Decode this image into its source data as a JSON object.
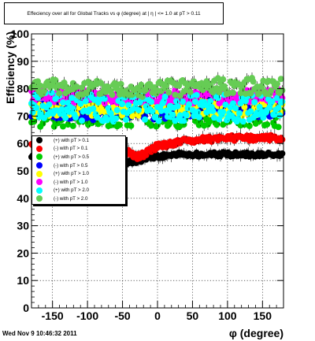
{
  "title": "Effeciency over all for Global Tracks vs φ (degree) at | η | <= 1.0 at pT > 0.11",
  "footer": "Wed Nov  9 10:46:32 2011",
  "chart_data": {
    "type": "scatter",
    "title": "Effeciency over all for Global Tracks vs φ (degree) at | η | <= 1.0 at pT > 0.11",
    "xlabel": "φ (degree)",
    "ylabel": "Efficiency (%)",
    "xlim": [
      -180,
      180
    ],
    "ylim": [
      0,
      100
    ],
    "xticks": [
      -150,
      -100,
      -50,
      0,
      50,
      100,
      150
    ],
    "yticks": [
      0,
      10,
      20,
      30,
      40,
      50,
      60,
      70,
      80,
      90,
      100
    ],
    "grid": true,
    "legend_position": "left-middle",
    "x_step": 1.8,
    "series": [
      {
        "name": "(+) with pT > 0.1",
        "color": "#000000",
        "base": [
          [
            -180,
            55
          ],
          [
            -140,
            53
          ],
          [
            -110,
            52
          ],
          [
            -70,
            52
          ],
          [
            -40,
            53
          ],
          [
            -10,
            55
          ],
          [
            30,
            56
          ],
          [
            80,
            56
          ],
          [
            120,
            56
          ],
          [
            180,
            56
          ]
        ],
        "amp": 0.8,
        "seed": 1
      },
      {
        "name": "(-) with pT > 0.1",
        "color": "#ff0000",
        "base": [
          [
            -180,
            60
          ],
          [
            -140,
            60
          ],
          [
            -80,
            60
          ],
          [
            -50,
            58
          ],
          [
            -30,
            55
          ],
          [
            -20,
            56
          ],
          [
            0,
            59
          ],
          [
            40,
            61
          ],
          [
            100,
            62
          ],
          [
            180,
            62
          ]
        ],
        "amp": 1.0,
        "seed": 2
      },
      {
        "name": "(+) with pT > 0.5",
        "color": "#00cc00",
        "base": [
          [
            -180,
            70
          ],
          [
            -100,
            70
          ],
          [
            0,
            70
          ],
          [
            100,
            70
          ],
          [
            180,
            70
          ]
        ],
        "amp": 4.0,
        "seed": 3
      },
      {
        "name": "(-) with pT > 0.5",
        "color": "#0000ff",
        "base": [
          [
            -180,
            73
          ],
          [
            -100,
            72
          ],
          [
            0,
            72
          ],
          [
            100,
            73
          ],
          [
            180,
            73
          ]
        ],
        "amp": 3.5,
        "seed": 4
      },
      {
        "name": "(+) with pT > 1.0",
        "color": "#ffff00",
        "base": [
          [
            -180,
            72
          ],
          [
            -100,
            73
          ],
          [
            0,
            73
          ],
          [
            100,
            73
          ],
          [
            180,
            73
          ]
        ],
        "amp": 3.0,
        "seed": 5
      },
      {
        "name": "(-) with pT > 1.0",
        "color": "#ff00ff",
        "base": [
          [
            -180,
            78
          ],
          [
            -100,
            77
          ],
          [
            0,
            77
          ],
          [
            100,
            77
          ],
          [
            180,
            78
          ]
        ],
        "amp": 2.5,
        "seed": 6
      },
      {
        "name": "(+) with pT > 2.0",
        "color": "#00ffff",
        "base": [
          [
            -180,
            74
          ],
          [
            -100,
            73
          ],
          [
            0,
            73
          ],
          [
            100,
            73
          ],
          [
            180,
            73
          ]
        ],
        "amp": 5.0,
        "seed": 7
      },
      {
        "name": "(-) with pT > 2.0",
        "color": "#66cc55",
        "base": [
          [
            -180,
            81
          ],
          [
            -100,
            80
          ],
          [
            0,
            80
          ],
          [
            100,
            81
          ],
          [
            180,
            81
          ]
        ],
        "amp": 3.0,
        "seed": 8
      }
    ]
  }
}
